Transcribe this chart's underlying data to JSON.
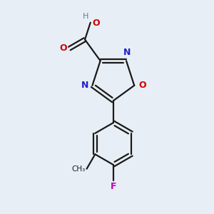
{
  "background_color": "#e8eef5",
  "bond_color": "#1a1a1a",
  "N_color": "#2020cc",
  "O_color": "#cc0000",
  "F_color": "#bb00bb",
  "H_color": "#4a8a8a",
  "line_width": 1.6,
  "fig_width": 3.0,
  "fig_height": 3.0,
  "dpi": 100,
  "xlim": [
    0,
    10
  ],
  "ylim": [
    0,
    10
  ]
}
